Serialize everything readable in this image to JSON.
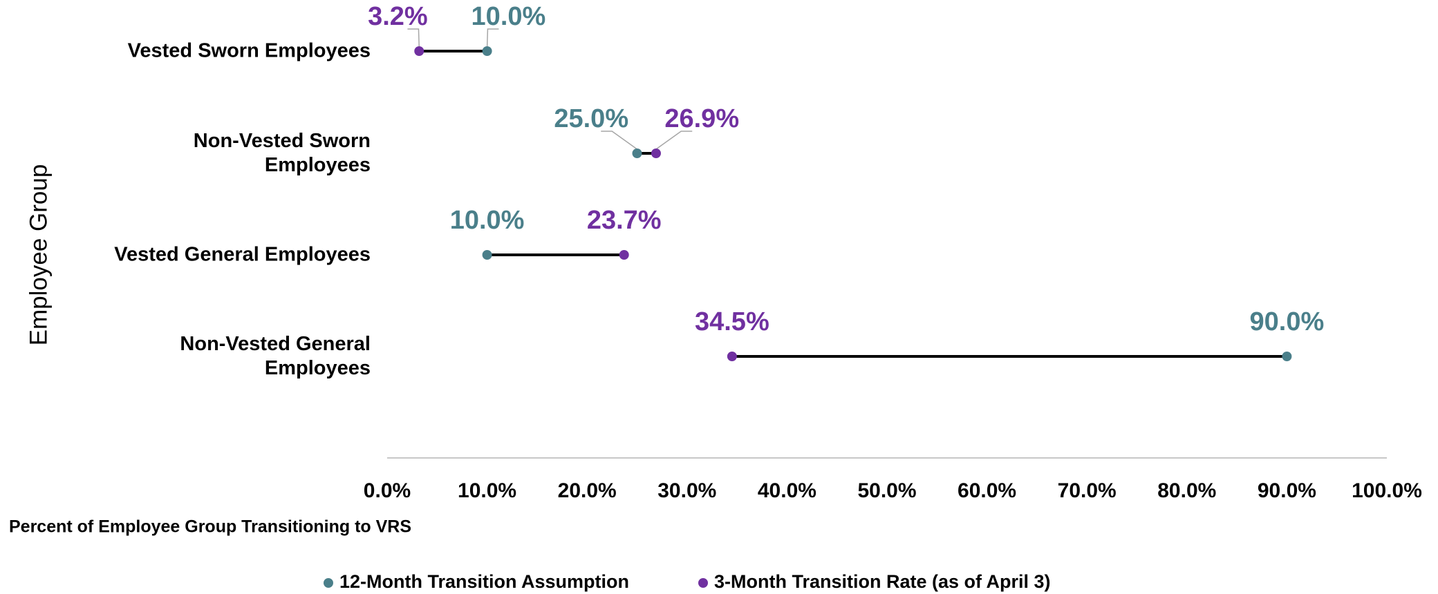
{
  "chart_data": {
    "type": "dumbbell",
    "y_label": "Employee Group",
    "x_label": "Percent of Employee Group Transitioning to VRS",
    "categories": [
      "Vested Sworn Employees",
      "Non-Vested Sworn\nEmployees",
      "Vested General Employees",
      "Non-Vested General\nEmployees"
    ],
    "series": [
      {
        "name": "12-Month Transition Assumption",
        "color": "#4a7f8a",
        "values": [
          10.0,
          25.0,
          10.0,
          90.0
        ],
        "value_labels": [
          "10.0%",
          "25.0%",
          "10.0%",
          "90.0%"
        ]
      },
      {
        "name": "3-Month Transition Rate (as of April 3)",
        "color": "#7030a0",
        "values": [
          3.2,
          26.9,
          23.7,
          34.5
        ],
        "value_labels": [
          "3.2%",
          "26.9%",
          "23.7%",
          "34.5%"
        ]
      }
    ],
    "connector_color": "#000000",
    "xlim": [
      0,
      100
    ],
    "xticks": [
      {
        "value": 0,
        "label": "0.0%"
      },
      {
        "value": 10,
        "label": "10.0%"
      },
      {
        "value": 20,
        "label": "20.0%"
      },
      {
        "value": 30,
        "label": "30.0%"
      },
      {
        "value": 40,
        "label": "40.0%"
      },
      {
        "value": 50,
        "label": "50.0%"
      },
      {
        "value": 60,
        "label": "60.0%"
      },
      {
        "value": 70,
        "label": "70.0%"
      },
      {
        "value": 80,
        "label": "80.0%"
      },
      {
        "value": 90,
        "label": "90.0%"
      },
      {
        "value": 100,
        "label": "100.0%"
      }
    ],
    "legend": "bottom"
  }
}
